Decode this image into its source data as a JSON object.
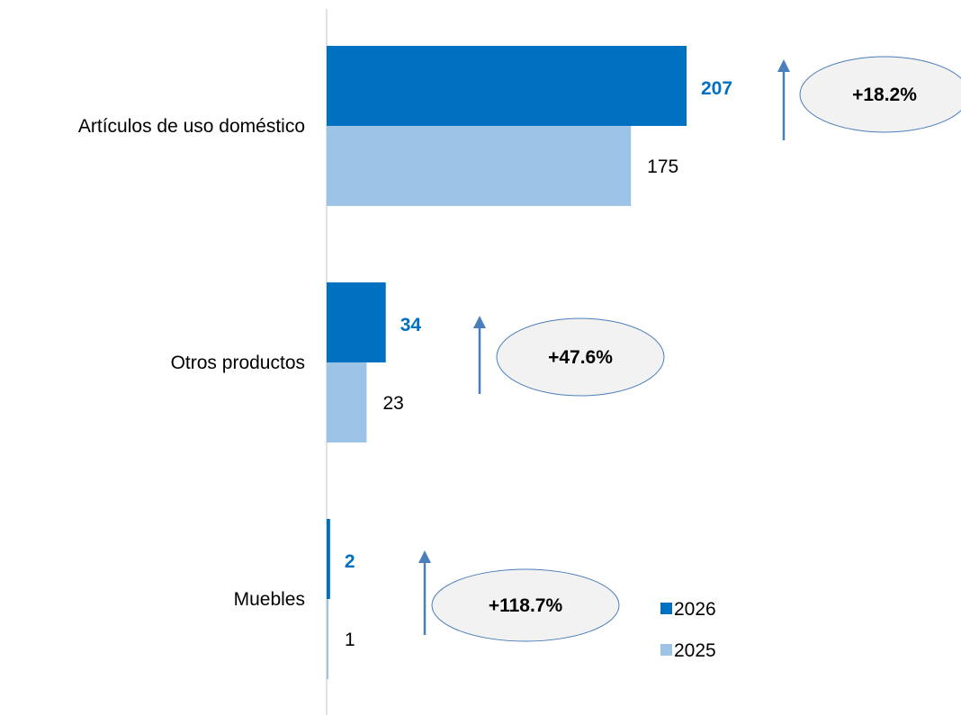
{
  "chart_data": {
    "type": "bar",
    "orientation": "horizontal",
    "categories": [
      "Artículos de uso doméstico",
      "Otros productos",
      "Muebles"
    ],
    "series": [
      {
        "name": "2026",
        "values": [
          207,
          34,
          2
        ],
        "color": "#0070C0",
        "labels": [
          "207",
          "34",
          "2"
        ]
      },
      {
        "name": "2025",
        "values": [
          175,
          23,
          1
        ],
        "color": "#9DC3E6",
        "labels": [
          "175",
          "23",
          "1"
        ]
      }
    ],
    "changes": [
      "+18.2%",
      "+47.6%",
      "+118.7%"
    ],
    "xlim": [
      0,
      210
    ],
    "grid": false,
    "legend_position": "bottom-right",
    "colors": {
      "arrow": "#4A7EBB",
      "badge_fill": "#F2F2F2",
      "badge_stroke": "#4A7EBB",
      "axis": "#D9D9D9"
    }
  }
}
